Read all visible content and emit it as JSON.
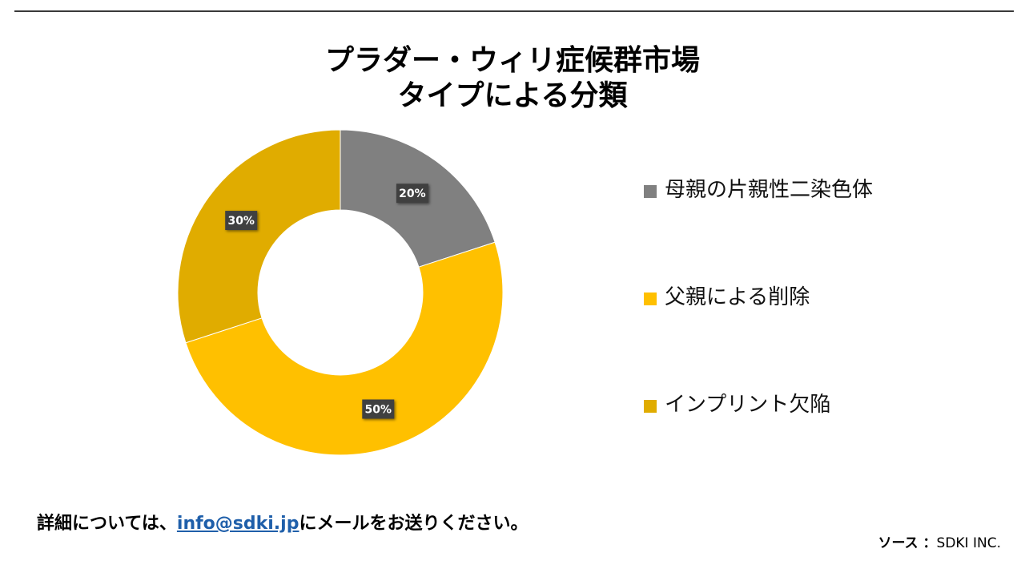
{
  "chart_data": {
    "type": "pie",
    "title": [
      "プラダー・ウィリ症候群市場",
      "タイプによる分類"
    ],
    "subtype": "donut",
    "categories": [
      "母親の片親性二染色体",
      "父親による削除",
      "インプリント欠陥"
    ],
    "values": [
      20,
      50,
      30
    ],
    "data_labels": [
      "20%",
      "50%",
      "30%"
    ],
    "colors": [
      "#808080",
      "#FFC000",
      "#E0AC00"
    ],
    "legend_position": "right"
  },
  "footer": {
    "contact_prefix": "詳細については、",
    "contact_email": "info@sdki.jp",
    "contact_suffix": "にメールをお送りください。",
    "source_label": "ソース ：",
    "source_value": "SDKI INC."
  }
}
